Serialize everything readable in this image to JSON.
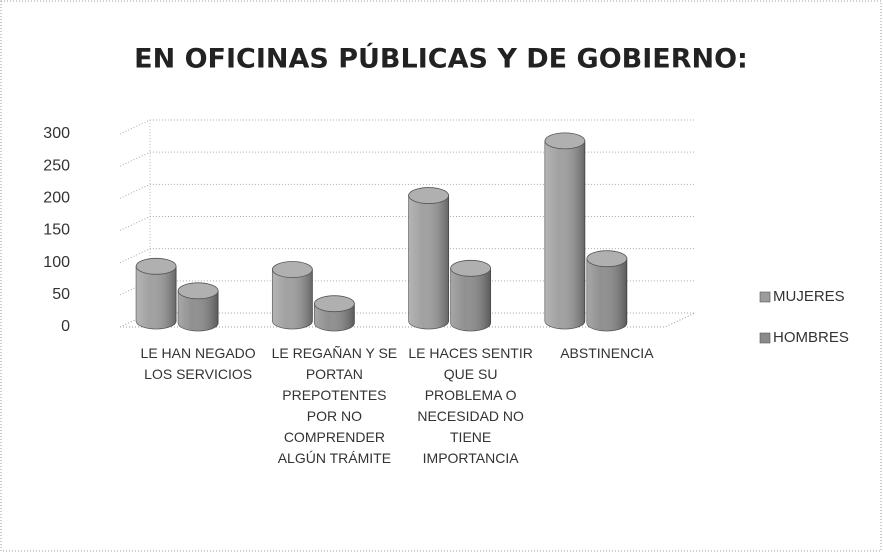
{
  "chart_data": {
    "type": "bar3d",
    "title": "EN OFICINAS PÚBLICAS Y DE GOBIERNO:",
    "categories": [
      "LE HAN NEGADO LOS SERVICIOS",
      "LE REGAÑAN Y SE PORTAN PREPOTENTES POR NO COMPRENDER ALGÚN TRÁMITE",
      "LE HACES SENTIR QUE SU PROBLEMA O NECESIDAD NO TIENE IMPORTANCIA",
      "ABSTINENCIA"
    ],
    "series": [
      {
        "name": "MUJERES",
        "color": "#9c9c9c",
        "values": [
          85,
          80,
          195,
          280
        ]
      },
      {
        "name": "HOMBRES",
        "color": "#8a8a8a",
        "values": [
          50,
          30,
          85,
          100
        ]
      }
    ],
    "ylim": [
      0,
      300
    ],
    "yticks": [
      0,
      50,
      100,
      150,
      200,
      250,
      300
    ],
    "grid": true,
    "legend": "right"
  }
}
